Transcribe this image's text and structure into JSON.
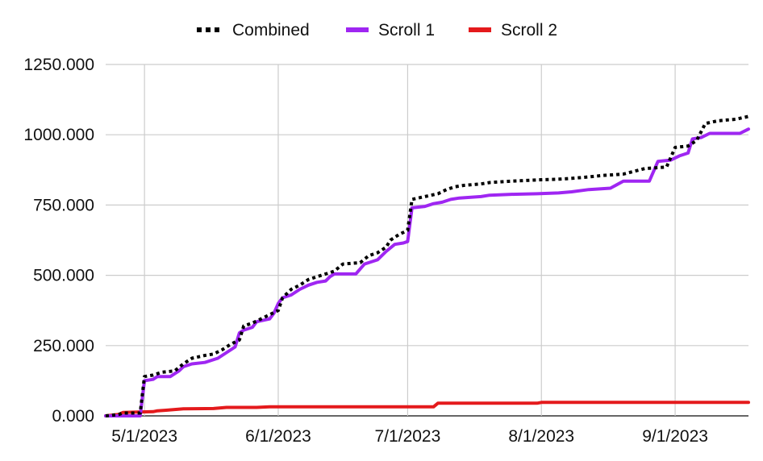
{
  "chart_data": {
    "type": "line",
    "grid": true,
    "legend_position": "top",
    "y_tick_labels": [
      "0.000",
      "250.000",
      "500.000",
      "750.000",
      "1000.000",
      "1250.000"
    ],
    "y_ticks": [
      0,
      250,
      500,
      750,
      1000,
      1250
    ],
    "ylim": [
      0,
      1250
    ],
    "x_tick_labels": [
      "5/1/2023",
      "6/1/2023",
      "7/1/2023",
      "8/1/2023",
      "9/1/2023"
    ],
    "x_ticks": [
      "2023-05-01",
      "2023-06-01",
      "2023-07-01",
      "2023-08-01",
      "2023-09-01"
    ],
    "xlim": [
      "2023-04-22",
      "2023-09-18"
    ],
    "series": [
      {
        "name": "Combined",
        "color": "#000000",
        "style": "dotted",
        "points": [
          [
            "2023-04-22",
            0
          ],
          [
            "2023-04-25",
            5
          ],
          [
            "2023-04-26",
            10
          ],
          [
            "2023-04-29",
            10
          ],
          [
            "2023-04-30",
            10
          ],
          [
            "2023-05-01",
            140
          ],
          [
            "2023-05-03",
            145
          ],
          [
            "2023-05-05",
            155
          ],
          [
            "2023-05-08",
            160
          ],
          [
            "2023-05-10",
            185
          ],
          [
            "2023-05-12",
            205
          ],
          [
            "2023-05-15",
            215
          ],
          [
            "2023-05-17",
            220
          ],
          [
            "2023-05-19",
            235
          ],
          [
            "2023-05-21",
            255
          ],
          [
            "2023-05-23",
            270
          ],
          [
            "2023-05-24",
            320
          ],
          [
            "2023-05-26",
            330
          ],
          [
            "2023-05-28",
            345
          ],
          [
            "2023-05-30",
            360
          ],
          [
            "2023-06-01",
            375
          ],
          [
            "2023-06-02",
            420
          ],
          [
            "2023-06-04",
            450
          ],
          [
            "2023-06-06",
            465
          ],
          [
            "2023-06-08",
            485
          ],
          [
            "2023-06-10",
            495
          ],
          [
            "2023-06-12",
            505
          ],
          [
            "2023-06-14",
            515
          ],
          [
            "2023-06-16",
            540
          ],
          [
            "2023-06-20",
            545
          ],
          [
            "2023-06-22",
            570
          ],
          [
            "2023-06-24",
            580
          ],
          [
            "2023-06-26",
            600
          ],
          [
            "2023-06-27",
            625
          ],
          [
            "2023-06-29",
            645
          ],
          [
            "2023-07-01",
            660
          ],
          [
            "2023-07-02",
            770
          ],
          [
            "2023-07-05",
            780
          ],
          [
            "2023-07-08",
            790
          ],
          [
            "2023-07-10",
            805
          ],
          [
            "2023-07-12",
            815
          ],
          [
            "2023-07-14",
            820
          ],
          [
            "2023-07-18",
            825
          ],
          [
            "2023-07-20",
            830
          ],
          [
            "2023-07-25",
            835
          ],
          [
            "2023-08-01",
            840
          ],
          [
            "2023-08-05",
            842
          ],
          [
            "2023-08-08",
            845
          ],
          [
            "2023-08-12",
            850
          ],
          [
            "2023-08-15",
            855
          ],
          [
            "2023-08-20",
            860
          ],
          [
            "2023-08-25",
            880
          ],
          [
            "2023-08-30",
            885
          ],
          [
            "2023-09-01",
            955
          ],
          [
            "2023-09-04",
            960
          ],
          [
            "2023-09-06",
            980
          ],
          [
            "2023-09-08",
            1040
          ],
          [
            "2023-09-11",
            1050
          ],
          [
            "2023-09-15",
            1055
          ],
          [
            "2023-09-18",
            1065
          ]
        ]
      },
      {
        "name": "Scroll 1",
        "color": "#9f26f2",
        "style": "solid",
        "points": [
          [
            "2023-04-22",
            0
          ],
          [
            "2023-04-30",
            0
          ],
          [
            "2023-05-01",
            125
          ],
          [
            "2023-05-03",
            130
          ],
          [
            "2023-05-04",
            140
          ],
          [
            "2023-05-07",
            140
          ],
          [
            "2023-05-09",
            160
          ],
          [
            "2023-05-10",
            175
          ],
          [
            "2023-05-12",
            185
          ],
          [
            "2023-05-15",
            190
          ],
          [
            "2023-05-18",
            205
          ],
          [
            "2023-05-20",
            225
          ],
          [
            "2023-05-22",
            245
          ],
          [
            "2023-05-23",
            295
          ],
          [
            "2023-05-24",
            305
          ],
          [
            "2023-05-26",
            315
          ],
          [
            "2023-05-27",
            335
          ],
          [
            "2023-05-30",
            345
          ],
          [
            "2023-05-31",
            365
          ],
          [
            "2023-06-01",
            400
          ],
          [
            "2023-06-02",
            420
          ],
          [
            "2023-06-04",
            430
          ],
          [
            "2023-06-06",
            450
          ],
          [
            "2023-06-08",
            465
          ],
          [
            "2023-06-10",
            475
          ],
          [
            "2023-06-12",
            480
          ],
          [
            "2023-06-13",
            495
          ],
          [
            "2023-06-14",
            505
          ],
          [
            "2023-06-19",
            505
          ],
          [
            "2023-06-21",
            540
          ],
          [
            "2023-06-24",
            555
          ],
          [
            "2023-06-26",
            585
          ],
          [
            "2023-06-28",
            610
          ],
          [
            "2023-06-30",
            615
          ],
          [
            "2023-07-01",
            620
          ],
          [
            "2023-07-02",
            740
          ],
          [
            "2023-07-05",
            745
          ],
          [
            "2023-07-07",
            755
          ],
          [
            "2023-07-09",
            760
          ],
          [
            "2023-07-11",
            770
          ],
          [
            "2023-07-13",
            775
          ],
          [
            "2023-07-18",
            780
          ],
          [
            "2023-07-20",
            785
          ],
          [
            "2023-07-25",
            788
          ],
          [
            "2023-07-31",
            790
          ],
          [
            "2023-08-05",
            793
          ],
          [
            "2023-08-08",
            797
          ],
          [
            "2023-08-12",
            805
          ],
          [
            "2023-08-17",
            810
          ],
          [
            "2023-08-20",
            835
          ],
          [
            "2023-08-26",
            835
          ],
          [
            "2023-08-28",
            905
          ],
          [
            "2023-08-31",
            910
          ],
          [
            "2023-09-02",
            925
          ],
          [
            "2023-09-04",
            935
          ],
          [
            "2023-09-05",
            985
          ],
          [
            "2023-09-07",
            990
          ],
          [
            "2023-09-09",
            1005
          ],
          [
            "2023-09-16",
            1005
          ],
          [
            "2023-09-18",
            1020
          ]
        ]
      },
      {
        "name": "Scroll 2",
        "color": "#e41a1c",
        "style": "solid",
        "points": [
          [
            "2023-04-22",
            0
          ],
          [
            "2023-04-25",
            5
          ],
          [
            "2023-04-26",
            12
          ],
          [
            "2023-05-03",
            15
          ],
          [
            "2023-05-04",
            18
          ],
          [
            "2023-05-06",
            20
          ],
          [
            "2023-05-10",
            25
          ],
          [
            "2023-05-17",
            26
          ],
          [
            "2023-05-20",
            30
          ],
          [
            "2023-05-27",
            30
          ],
          [
            "2023-05-30",
            32
          ],
          [
            "2023-07-07",
            32
          ],
          [
            "2023-07-08",
            45
          ],
          [
            "2023-07-31",
            45
          ],
          [
            "2023-08-01",
            48
          ],
          [
            "2023-09-18",
            48
          ]
        ]
      }
    ]
  }
}
